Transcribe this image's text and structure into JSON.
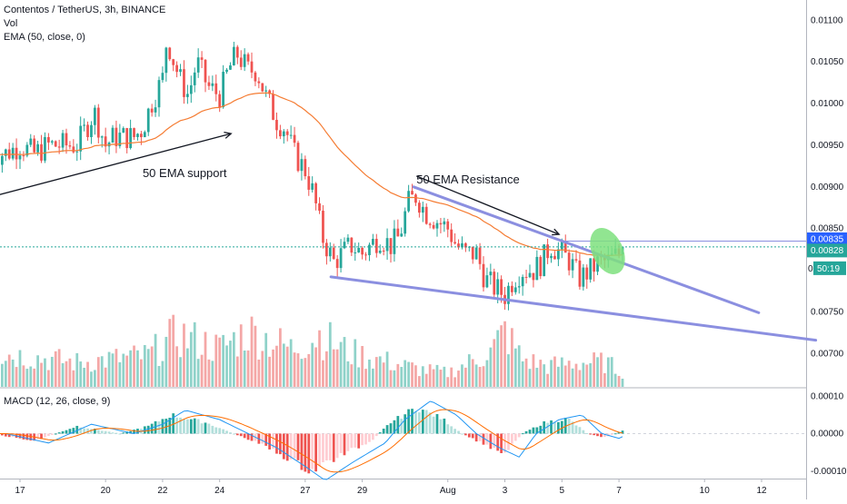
{
  "header": {
    "symbol_line": "Contentos / TetherUS, 3h, BINANCE",
    "volume_label": "Vol",
    "ema_label": "EMA (50, close, 0)",
    "macd_label": "MACD (12, 26, close, 9)"
  },
  "colors": {
    "bull": "#26a69a",
    "bear": "#ef5350",
    "vol_bull": "#8fd2c9",
    "vol_bear": "#f4a7a6",
    "ema": "#f57c33",
    "trendline": "#8b8fe0",
    "macd_line": "#2196f3",
    "signal_line": "#ff6d00",
    "hist_pos_strong": "#26a69a",
    "hist_pos_weak": "#b2dfdb",
    "hist_neg_strong": "#ef5350",
    "hist_neg_weak": "#ffcdd2",
    "highlight": "#7ee07e",
    "resistance_line": "#8b8fe0",
    "last_price_tag": "#26a69a",
    "resistance_tag": "#2962ff"
  },
  "chart_data": {
    "type": "candlestick",
    "price_axis": {
      "ylim": [
        0.0066,
        0.0112
      ],
      "ticks": [
        "0.01100",
        "0.01050",
        "0.01000",
        "0.00950",
        "0.00900",
        "0.00850",
        "0.00750",
        "0.00700"
      ],
      "tick_values": [
        0.011,
        0.0105,
        0.01,
        0.0095,
        0.009,
        0.0085,
        0.0075,
        0.007
      ]
    },
    "macd_axis": {
      "ylim": [
        -0.00012,
        0.00012
      ],
      "ticks": [
        "0.00010",
        "0.00000",
        "-0.00010"
      ],
      "tick_values": [
        0.0001,
        0.0,
        -0.0001
      ]
    },
    "x_axis": {
      "ticks": [
        "17",
        "20",
        "22",
        "24",
        "27",
        "29",
        "Aug",
        "3",
        "5",
        "7",
        "10",
        "12"
      ],
      "tick_days": [
        17,
        20,
        22,
        24,
        27,
        29,
        32,
        34,
        36,
        38,
        41,
        43
      ],
      "last_bar_day": 38.2
    },
    "price_levels": {
      "resistance_label": "0.00835",
      "resistance_value": 0.00835,
      "last_price_label": "0.00828",
      "last_price_value": 0.00828,
      "countdown_prefix": "0",
      "countdown": "50:19"
    },
    "annotations": [
      {
        "text": "50 EMA support",
        "day": 21.3,
        "price": 0.00912
      },
      {
        "text": "50 EMA Resistance",
        "day": 30.9,
        "price": 0.00904
      }
    ],
    "arrows": [
      {
        "from_day": 16.2,
        "from_price": 0.0089,
        "to_day": 24.4,
        "to_price": 0.00964
      },
      {
        "from_day": 30.9,
        "from_price": 0.00913,
        "to_day": 35.9,
        "to_price": 0.00843
      }
    ],
    "trendlines": [
      {
        "from_day": 30.8,
        "from_price": 0.009,
        "to_day": 42.9,
        "to_price": 0.00749
      },
      {
        "from_day": 27.9,
        "from_price": 0.00792,
        "to_day": 44.9,
        "to_price": 0.00716
      }
    ],
    "highlight_ellipse": {
      "day": 37.6,
      "price": 0.00823
    },
    "anchors": [
      [
        16,
        0.0094
      ],
      [
        16.5,
        0.0094
      ],
      [
        17,
        0.0095
      ],
      [
        17.5,
        0.0094
      ],
      [
        18,
        0.0095
      ],
      [
        18.5,
        0.0095
      ],
      [
        19,
        0.0095
      ],
      [
        19.3,
        0.0097
      ],
      [
        19.6,
        0.0099
      ],
      [
        20,
        0.0095
      ],
      [
        20.3,
        0.0096
      ],
      [
        20.6,
        0.0096
      ],
      [
        21,
        0.0096
      ],
      [
        21.3,
        0.0097
      ],
      [
        21.6,
        0.01
      ],
      [
        22,
        0.0103
      ],
      [
        22.15,
        0.0108
      ],
      [
        22.3,
        0.0106
      ],
      [
        22.6,
        0.0103
      ],
      [
        22.9,
        0.0101
      ],
      [
        23.2,
        0.0105
      ],
      [
        23.6,
        0.0102
      ],
      [
        24,
        0.0101
      ],
      [
        24.3,
        0.0104
      ],
      [
        24.6,
        0.0106
      ],
      [
        25,
        0.0104
      ],
      [
        25.3,
        0.0104
      ],
      [
        25.6,
        0.0101
      ],
      [
        26,
        0.0098
      ],
      [
        26.3,
        0.0097
      ],
      [
        26.6,
        0.0094
      ],
      [
        27,
        0.0092
      ],
      [
        27.3,
        0.0089
      ],
      [
        27.6,
        0.0084
      ],
      [
        28,
        0.0081
      ],
      [
        28.3,
        0.0082
      ],
      [
        28.6,
        0.0083
      ],
      [
        29,
        0.0082
      ],
      [
        29.3,
        0.0083
      ],
      [
        29.6,
        0.0084
      ],
      [
        30,
        0.0083
      ],
      [
        30.3,
        0.0084
      ],
      [
        30.6,
        0.0088
      ],
      [
        30.9,
        0.0089
      ],
      [
        31.2,
        0.0087
      ],
      [
        31.6,
        0.0086
      ],
      [
        32,
        0.0085
      ],
      [
        32.3,
        0.0083
      ],
      [
        32.6,
        0.0082
      ],
      [
        33,
        0.0082
      ],
      [
        33.3,
        0.0079
      ],
      [
        33.6,
        0.0078
      ],
      [
        34,
        0.0077
      ],
      [
        34.3,
        0.0079
      ],
      [
        34.6,
        0.008
      ],
      [
        35,
        0.008
      ],
      [
        35.3,
        0.0081
      ],
      [
        35.6,
        0.0083
      ],
      [
        36,
        0.0082
      ],
      [
        36.3,
        0.0081
      ],
      [
        36.6,
        0.0079
      ],
      [
        37,
        0.008
      ],
      [
        37.3,
        0.0081
      ],
      [
        37.6,
        0.0081
      ],
      [
        38,
        0.0082
      ],
      [
        38.2,
        0.00828
      ]
    ],
    "volume_profile": [
      [
        16,
        0.5
      ],
      [
        19,
        0.35
      ],
      [
        21.5,
        0.45
      ],
      [
        22.5,
        0.75
      ],
      [
        24,
        0.55
      ],
      [
        25,
        0.8
      ],
      [
        26.5,
        0.55
      ],
      [
        27.5,
        0.75
      ],
      [
        28.5,
        0.5
      ],
      [
        30,
        0.35
      ],
      [
        31,
        0.25
      ],
      [
        32,
        0.2
      ],
      [
        33.5,
        0.5
      ],
      [
        34,
        0.8
      ],
      [
        34.6,
        0.4
      ],
      [
        35.5,
        0.3
      ],
      [
        36.5,
        0.35
      ],
      [
        37.5,
        0.35
      ],
      [
        38.2,
        0.2
      ]
    ],
    "macd_profile": [
      [
        16,
        0.0
      ],
      [
        17.5,
        -2e-05
      ],
      [
        19,
        2e-05
      ],
      [
        20.5,
        0.0
      ],
      [
        21.5,
        2e-05
      ],
      [
        22.3,
        5e-05
      ],
      [
        23.5,
        3e-05
      ],
      [
        24.5,
        0.0
      ],
      [
        25.5,
        -3e-05
      ],
      [
        26.5,
        -7e-05
      ],
      [
        27.2,
        -0.0001
      ],
      [
        28.2,
        -6e-05
      ],
      [
        29.3,
        -2e-05
      ],
      [
        30,
        3e-05
      ],
      [
        30.9,
        7e-05
      ],
      [
        31.8,
        4e-05
      ],
      [
        32.5,
        0.0
      ],
      [
        33.3,
        -3e-05
      ],
      [
        34,
        -5e-05
      ],
      [
        34.6,
        0.0
      ],
      [
        35.4,
        3e-05
      ],
      [
        36.2,
        4e-05
      ],
      [
        36.9,
        0.0
      ],
      [
        37.5,
        -1e-05
      ],
      [
        38.2,
        1e-05
      ]
    ]
  }
}
